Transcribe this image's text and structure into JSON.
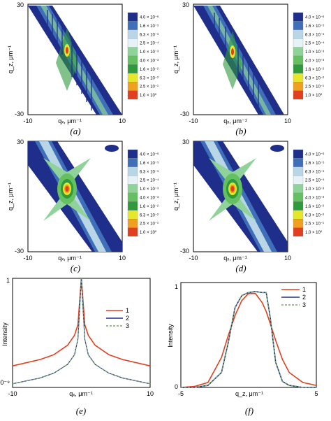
{
  "colorbar": {
    "levels": [
      "4.0 × 10⁻⁶",
      "1.6 × 10⁻⁵",
      "6.3 × 10⁻⁵",
      "2.5 × 10⁻⁴",
      "1.0 × 10⁻³",
      "4.0 × 10⁻³",
      "1.6 × 10⁻²",
      "6.3 × 10⁻²",
      "2.5 × 10⁻¹",
      "1.0 × 10⁰"
    ],
    "colors": [
      "#1f2e8a",
      "#3e6fb8",
      "#b9d6e6",
      "#e6f2f5",
      "#8fd39a",
      "#64c060",
      "#2f9a3c",
      "#e6e62a",
      "#f0a020",
      "#e04020"
    ]
  },
  "maps": [
    {
      "caption": "(a)",
      "xlabel": "qₓ, μm⁻¹",
      "ylabel": "q_z, μm⁻¹",
      "xticks": [
        "-10",
        "10"
      ],
      "yticks": [
        "30",
        "-30"
      ]
    },
    {
      "caption": "(b)",
      "xlabel": "qₓ, μm⁻¹",
      "ylabel": "q_z, μm⁻¹",
      "xticks": [
        "-10",
        "10"
      ],
      "yticks": [
        "30",
        "-30"
      ]
    },
    {
      "caption": "(c)",
      "xlabel": "qₓ, μm⁻¹",
      "ylabel": "q_z, μm⁻¹",
      "xticks": [
        "-10",
        "10"
      ],
      "yticks": [
        "30",
        "-30"
      ]
    },
    {
      "caption": "(d)",
      "xlabel": "qₓ, μm⁻¹",
      "ylabel": "q_z, μm⁻¹",
      "xticks": [
        "-10",
        "10"
      ],
      "yticks": [
        "30",
        "-30"
      ]
    }
  ],
  "chart_data": [
    {
      "type": "line",
      "panel": "(e)",
      "ylabel": "Intensity",
      "xlabel": "qₓ, μm⁻¹",
      "xlim": [
        -10,
        10
      ],
      "xticks": [
        "-10",
        "10"
      ],
      "yticks": [
        "1",
        "10⁻⁹"
      ],
      "ylog": true,
      "series": [
        {
          "name": "1",
          "color": "#e04020"
        },
        {
          "name": "2",
          "color": "#1f2e8a"
        },
        {
          "name": "3",
          "color": "#7aa66a"
        }
      ],
      "x": [
        -10,
        -6,
        -4,
        -2,
        -1,
        -0.5,
        0,
        0.5,
        1,
        2,
        4,
        6,
        10
      ],
      "series_values": {
        "1": [
          6e-08,
          2e-07,
          5e-07,
          3e-06,
          2e-05,
          0.00015,
          1.0,
          0.00015,
          2e-05,
          3e-06,
          5e-07,
          2e-07,
          6e-08
        ],
        "2": [
          2e-09,
          6e-09,
          1.5e-08,
          8e-08,
          5e-07,
          1e-05,
          1.0,
          1e-05,
          5e-07,
          8e-08,
          1.5e-08,
          6e-09,
          2e-09
        ],
        "3": [
          2e-09,
          6e-09,
          1.5e-08,
          8e-08,
          5e-07,
          1e-05,
          1.0,
          1e-05,
          5e-07,
          8e-08,
          1.5e-08,
          6e-09,
          2e-09
        ]
      }
    },
    {
      "type": "line",
      "panel": "(f)",
      "ylabel": "Intensity",
      "xlabel": "q_z, μm⁻¹",
      "xlim": [
        -5,
        5
      ],
      "ylim": [
        0,
        1.05
      ],
      "xticks": [
        "-5",
        "0",
        "5"
      ],
      "yticks": [
        "1",
        "0"
      ],
      "series": [
        {
          "name": "1",
          "color": "#e04020"
        },
        {
          "name": "2",
          "color": "#1f2e8a"
        },
        {
          "name": "3",
          "color": "#7aa66a"
        }
      ],
      "x": [
        -5,
        -4,
        -3,
        -2,
        -1.5,
        -1,
        -0.5,
        0,
        0.5,
        1,
        1.3,
        1.6,
        2,
        2.5,
        3,
        4,
        5
      ],
      "series_values": {
        "1": [
          0.0,
          0.01,
          0.05,
          0.3,
          0.52,
          0.72,
          0.87,
          0.94,
          0.94,
          0.85,
          0.76,
          0.64,
          0.47,
          0.28,
          0.15,
          0.05,
          0.02
        ],
        "2": [
          0.0,
          0.0,
          0.02,
          0.15,
          0.45,
          0.8,
          0.92,
          0.95,
          0.96,
          0.95,
          0.95,
          0.7,
          0.25,
          0.06,
          0.02,
          0.0,
          0.0
        ],
        "3": [
          0.0,
          0.0,
          0.02,
          0.15,
          0.45,
          0.8,
          0.92,
          0.95,
          0.96,
          0.95,
          0.95,
          0.7,
          0.25,
          0.06,
          0.02,
          0.0,
          0.0
        ]
      }
    }
  ]
}
